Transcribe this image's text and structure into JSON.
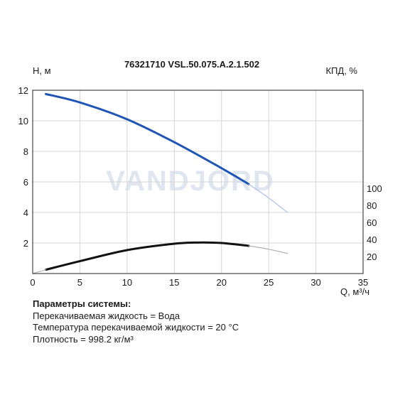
{
  "chart_data": {
    "type": "line",
    "title": "76321710 VSL.50.075.A.2.1.502",
    "xlabel": "Q, м³/ч",
    "ylabel": "H, м",
    "y2label": "КПД, %",
    "xlim": [
      0,
      35
    ],
    "ylim": [
      0,
      12
    ],
    "y2ticks": [
      20,
      40,
      60,
      80,
      100
    ],
    "xticks": [
      0,
      5,
      10,
      15,
      20,
      25,
      30,
      35
    ],
    "yticks": [
      2,
      4,
      6,
      8,
      10,
      12
    ],
    "grid": true,
    "watermark": "VANDJORD",
    "series": [
      {
        "role": "head",
        "color": "#1f55b5",
        "x": [
          1.4,
          5,
          10,
          15,
          20,
          22.9
        ],
        "y": [
          11.75,
          11.2,
          10.1,
          8.6,
          6.9,
          5.85
        ]
      },
      {
        "role": "head-extrapolated",
        "color": "#a9c0e6",
        "x": [
          22.9,
          25,
          27
        ],
        "y": [
          5.85,
          4.95,
          4.0
        ]
      },
      {
        "role": "efficiency",
        "color": "#111111",
        "x": [
          1.4,
          5,
          10,
          15,
          17.5,
          20,
          22.9
        ],
        "y": [
          4.5,
          14.5,
          27.5,
          35.0,
          36.4,
          35.8,
          32.5
        ]
      },
      {
        "role": "efficiency-extrapolated",
        "color": "#b3b3b3",
        "x": [
          22.9,
          25,
          27
        ],
        "y": [
          32.5,
          28.5,
          23.5
        ]
      },
      {
        "role": "efficiency-startup",
        "color": "#b3b3b3",
        "x": [
          0,
          1.4
        ],
        "y": [
          0,
          4.5
        ]
      }
    ]
  },
  "params": {
    "header": "Параметры системы:",
    "line1": "Перекачиваемая жидкость = Вода",
    "line2": "Температура перекачиваемой жидкости = 20 °C",
    "line3": "Плотность = 998.2 кг/м³"
  }
}
